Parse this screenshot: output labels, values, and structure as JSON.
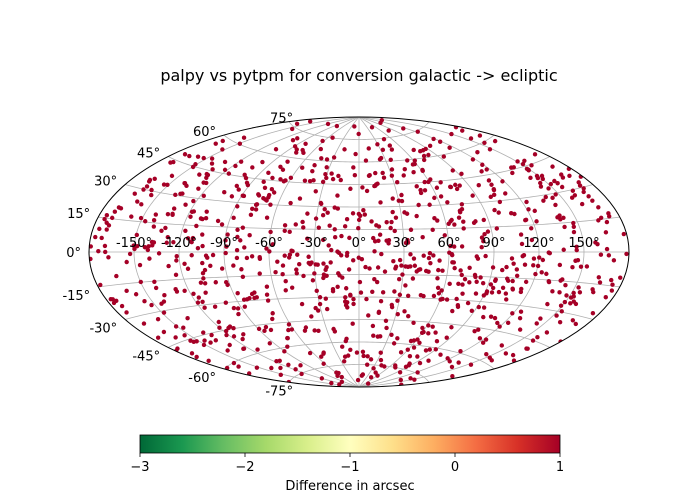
{
  "chart_data": {
    "type": "scatter",
    "projection": "aitoff",
    "title": "palpy vs pytpm for conversion galactic -> ecliptic",
    "lon_ticks": [
      "-150°",
      "-120°",
      "-90°",
      "-60°",
      "-30°",
      "0°",
      "30°",
      "60°",
      "90°",
      "120°",
      "150°"
    ],
    "lon_tick_values": [
      -150,
      -120,
      -90,
      -60,
      -30,
      0,
      30,
      60,
      90,
      120,
      150
    ],
    "lat_ticks": [
      "75°",
      "60°",
      "45°",
      "30°",
      "15°",
      "0°",
      "-15°",
      "-30°",
      "-45°",
      "-60°",
      "-75°"
    ],
    "lat_tick_values": [
      75,
      60,
      45,
      30,
      15,
      0,
      -15,
      -30,
      -45,
      -60,
      -75
    ],
    "grid": true,
    "point_count": 1000,
    "point_value_arcsec": 1,
    "point_color": "#a50026",
    "colorbar": {
      "label": "Difference in arcsec",
      "min": -3,
      "max": 1,
      "ticks": [
        "−3",
        "−2",
        "−1",
        "0",
        "1"
      ],
      "tick_values": [
        -3,
        -2,
        -1,
        0,
        1
      ],
      "colormap": "RdYlGn_r",
      "stops": [
        "#006837",
        "#1a9850",
        "#66bd63",
        "#a6d96a",
        "#d9ef8b",
        "#ffffbf",
        "#fee08b",
        "#fdae61",
        "#f46d43",
        "#d73027",
        "#a50026"
      ]
    }
  }
}
